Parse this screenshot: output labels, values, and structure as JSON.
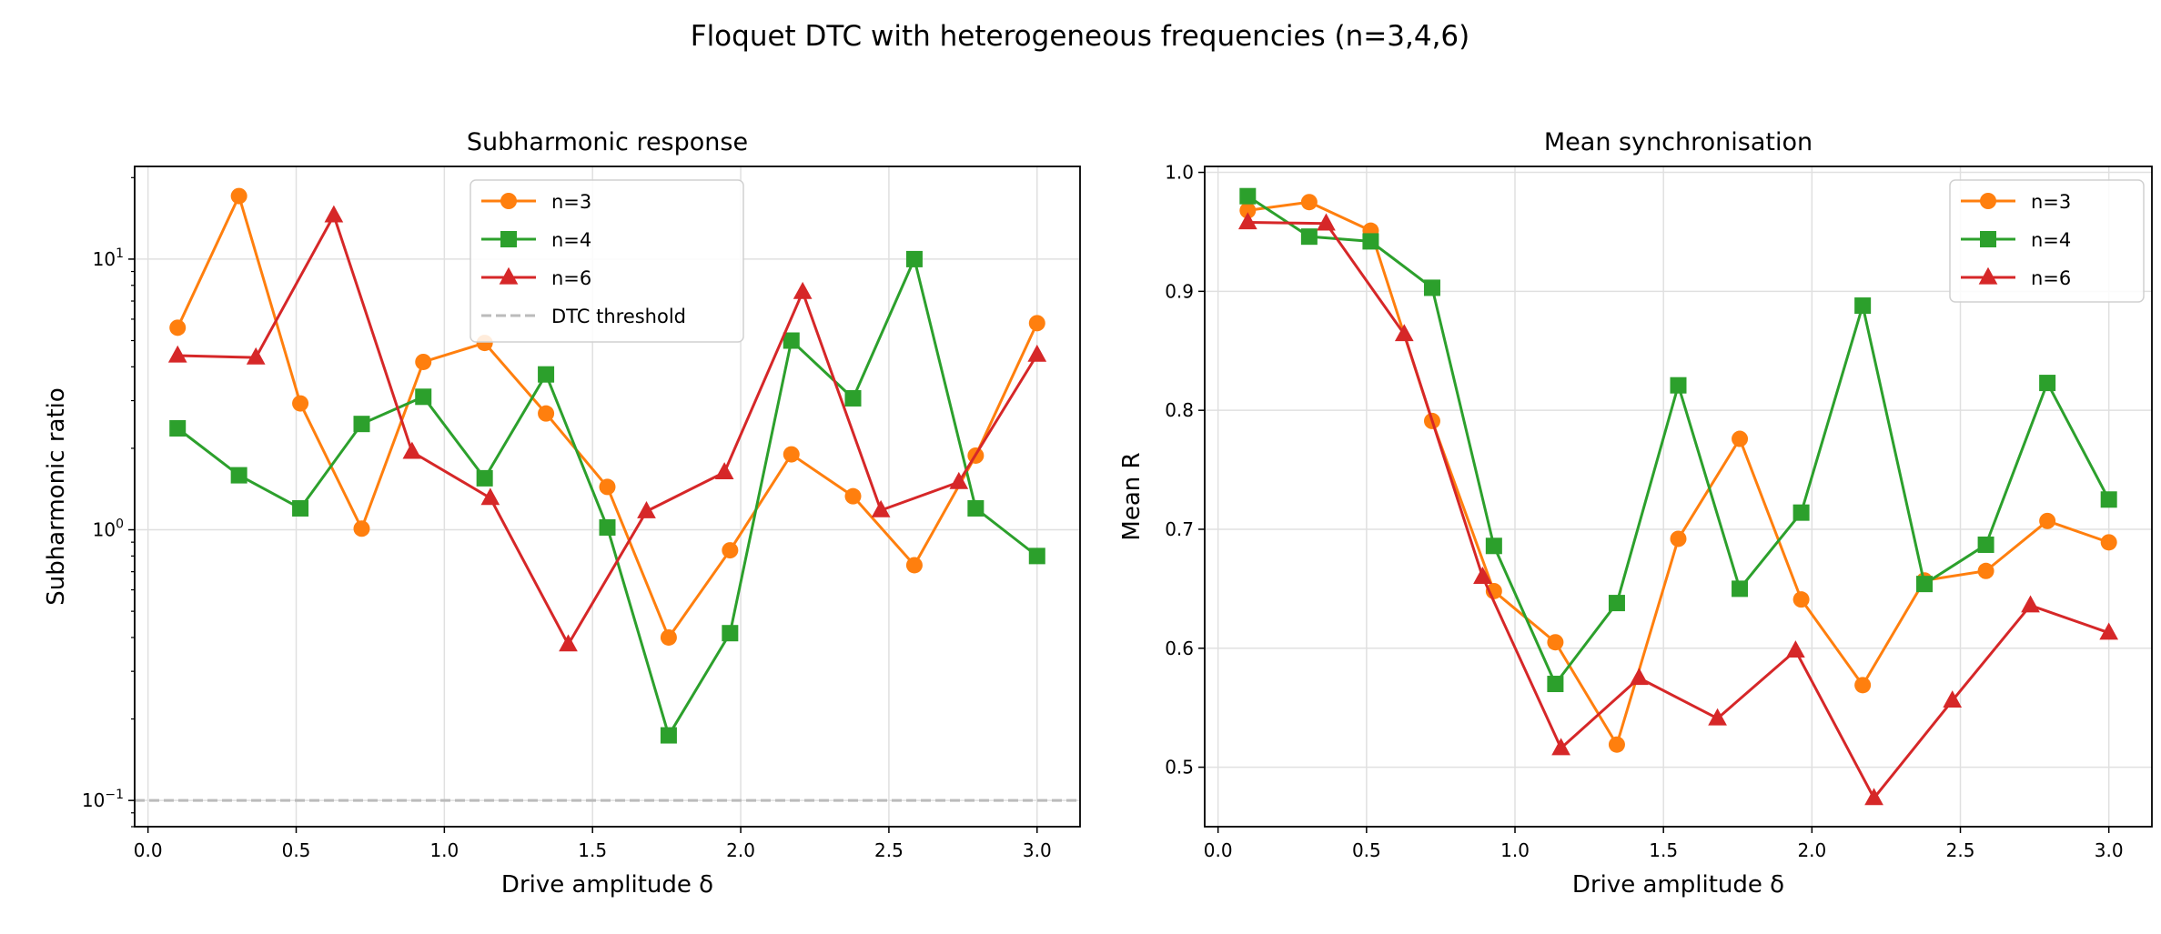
{
  "figure_title": "Floquet DTC with heterogeneous frequencies (n=3,4,6)",
  "colors": {
    "n3": "#ff7f0e",
    "n4": "#2ca02c",
    "n6": "#d62728",
    "threshold": "#bbbbbb",
    "grid": "#e0e0e0"
  },
  "chart_data": [
    {
      "type": "line",
      "title": "Subharmonic response",
      "xlabel": "Drive amplitude δ",
      "ylabel": "Subharmonic ratio",
      "yscale": "log",
      "xlim": [
        -0.045,
        3.145
      ],
      "ylim": [
        0.08,
        22
      ],
      "xticks": [
        "0.0",
        "0.5",
        "1.0",
        "1.5",
        "2.0",
        "2.5",
        "3.0"
      ],
      "yticks": [
        {
          "value": 0.1,
          "label": "10",
          "exp": "−1"
        },
        {
          "value": 1,
          "label": "10",
          "exp": "0"
        },
        {
          "value": 10,
          "label": "10",
          "exp": "1"
        }
      ],
      "grid": true,
      "legend": "top-center",
      "series": [
        {
          "name": "n=3",
          "marker": "circle",
          "color": "#ff7f0e",
          "x": [
            0.1,
            0.307,
            0.514,
            0.721,
            0.929,
            1.136,
            1.343,
            1.55,
            1.757,
            1.964,
            2.171,
            2.379,
            2.586,
            2.793,
            3.0
          ],
          "y": [
            5.58,
            17.1,
            2.93,
            1.01,
            4.17,
            4.9,
            2.69,
            1.44,
            0.4,
            0.84,
            1.9,
            1.33,
            0.74,
            1.88,
            5.8
          ]
        },
        {
          "name": "n=4",
          "marker": "square",
          "color": "#2ca02c",
          "x": [
            0.1,
            0.307,
            0.514,
            0.721,
            0.929,
            1.136,
            1.343,
            1.55,
            1.757,
            1.964,
            2.171,
            2.379,
            2.586,
            2.793,
            3.0
          ],
          "y": [
            2.37,
            1.59,
            1.2,
            2.46,
            3.1,
            1.55,
            3.75,
            1.02,
            0.174,
            0.415,
            5.0,
            3.06,
            10.0,
            1.2,
            0.8
          ]
        },
        {
          "name": "n=6",
          "marker": "triangle",
          "color": "#d62728",
          "x": [
            0.1,
            0.364,
            0.627,
            0.891,
            1.155,
            1.418,
            1.682,
            1.945,
            2.209,
            2.473,
            2.736,
            3.0
          ],
          "y": [
            4.4,
            4.33,
            14.5,
            1.94,
            1.31,
            0.377,
            1.17,
            1.63,
            7.56,
            1.18,
            1.5,
            4.43
          ]
        }
      ],
      "threshold": {
        "name": "DTC threshold",
        "y": 0.1,
        "style": "dashed"
      }
    },
    {
      "type": "line",
      "title": "Mean synchronisation",
      "xlabel": "Drive amplitude δ",
      "ylabel": "Mean R",
      "yscale": "linear",
      "xlim": [
        -0.045,
        3.145
      ],
      "ylim": [
        0.45,
        1.005
      ],
      "xticks": [
        "0.0",
        "0.5",
        "1.0",
        "1.5",
        "2.0",
        "2.5",
        "3.0"
      ],
      "yticks": [
        "0.5",
        "0.6",
        "0.7",
        "0.8",
        "0.9",
        "1.0"
      ],
      "grid": true,
      "legend": "top-right",
      "series": [
        {
          "name": "n=3",
          "marker": "circle",
          "color": "#ff7f0e",
          "x": [
            0.1,
            0.307,
            0.514,
            0.721,
            0.929,
            1.136,
            1.343,
            1.55,
            1.757,
            1.964,
            2.171,
            2.379,
            2.586,
            2.793,
            3.0
          ],
          "y": [
            0.968,
            0.975,
            0.951,
            0.791,
            0.648,
            0.605,
            0.519,
            0.692,
            0.776,
            0.641,
            0.569,
            0.657,
            0.665,
            0.707,
            0.689
          ]
        },
        {
          "name": "n=4",
          "marker": "square",
          "color": "#2ca02c",
          "x": [
            0.1,
            0.307,
            0.514,
            0.721,
            0.929,
            1.136,
            1.343,
            1.55,
            1.757,
            1.964,
            2.171,
            2.379,
            2.586,
            2.793,
            3.0
          ],
          "y": [
            0.98,
            0.946,
            0.942,
            0.903,
            0.686,
            0.57,
            0.638,
            0.821,
            0.65,
            0.714,
            0.888,
            0.654,
            0.687,
            0.823,
            0.725
          ]
        },
        {
          "name": "n=6",
          "marker": "triangle",
          "color": "#d62728",
          "x": [
            0.1,
            0.364,
            0.627,
            0.891,
            1.155,
            1.418,
            1.682,
            1.945,
            2.209,
            2.473,
            2.736,
            3.0
          ],
          "y": [
            0.958,
            0.957,
            0.864,
            0.66,
            0.516,
            0.575,
            0.541,
            0.598,
            0.474,
            0.556,
            0.636,
            0.613
          ]
        }
      ]
    }
  ]
}
